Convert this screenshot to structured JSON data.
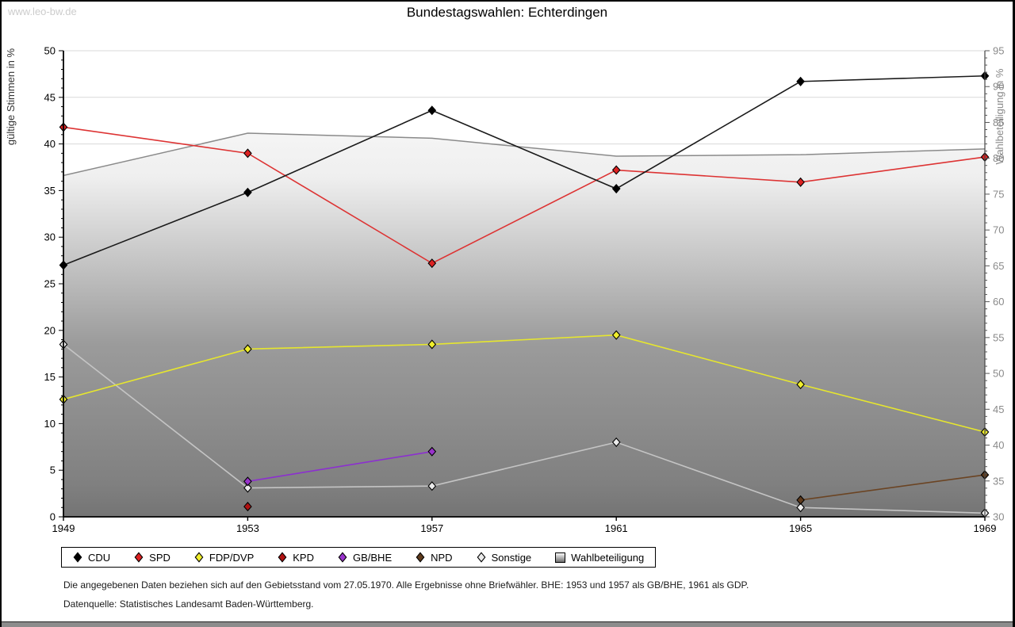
{
  "watermark": "www.leo-bw.de",
  "title": "Bundestagswahlen: Echterdingen",
  "chart_data": {
    "type": "line",
    "x": [
      1949,
      1953,
      1957,
      1961,
      1965,
      1969
    ],
    "left_axis": {
      "label": "gültige Stimmen in %",
      "min": 0,
      "max": 50,
      "tick_step": 5
    },
    "right_axis": {
      "label": "Wahlbeteiligung in %",
      "min": 30,
      "max": 95,
      "tick_step": 5
    },
    "grid": true,
    "legend_position": "bottom",
    "series": [
      {
        "name": "CDU",
        "axis": "left",
        "color": "#1a1a1a",
        "marker_fill": "#000000",
        "values": [
          27.0,
          34.8,
          43.6,
          35.2,
          46.7,
          47.3
        ]
      },
      {
        "name": "SPD",
        "axis": "left",
        "color": "#dd3333",
        "marker_fill": "#dd2222",
        "values": [
          41.8,
          39.0,
          27.2,
          37.2,
          35.9,
          38.6
        ]
      },
      {
        "name": "FDP/DVP",
        "axis": "left",
        "color": "#e6e62e",
        "marker_fill": "#f0ee2c",
        "values": [
          12.6,
          18.0,
          18.5,
          19.5,
          14.2,
          9.1
        ]
      },
      {
        "name": "KPD",
        "axis": "left",
        "color": "#b01212",
        "marker_fill": "#b01212",
        "values": [
          null,
          1.1,
          null,
          null,
          null,
          null
        ]
      },
      {
        "name": "GB/BHE",
        "axis": "left",
        "color": "#8c2fd0",
        "marker_fill": "#9933cc",
        "values": [
          null,
          3.8,
          7.0,
          null,
          null,
          null
        ]
      },
      {
        "name": "NPD",
        "axis": "left",
        "color": "#6b4423",
        "marker_fill": "#5e3a1c",
        "values": [
          null,
          null,
          null,
          null,
          1.8,
          4.5
        ]
      },
      {
        "name": "Sonstige",
        "axis": "left",
        "color": "#c4c4c4",
        "marker_fill": "#ebebeb",
        "values": [
          18.5,
          3.1,
          3.3,
          8.0,
          1.0,
          0.4
        ]
      },
      {
        "name": "Wahlbeteiligung",
        "axis": "right",
        "type": "area",
        "color": "#8a8a8a",
        "values": [
          77.6,
          83.5,
          82.8,
          80.3,
          80.5,
          81.3
        ]
      }
    ]
  },
  "legend": {
    "items": [
      {
        "label": "CDU",
        "marker": "diamond",
        "color": "#000000"
      },
      {
        "label": "SPD",
        "marker": "diamond",
        "color": "#dd2222"
      },
      {
        "label": "FDP/DVP",
        "marker": "diamond",
        "color": "#f0ee2c"
      },
      {
        "label": "KPD",
        "marker": "diamond",
        "color": "#b01212"
      },
      {
        "label": "GB/BHE",
        "marker": "diamond",
        "color": "#9933cc"
      },
      {
        "label": "NPD",
        "marker": "diamond",
        "color": "#5e3a1c"
      },
      {
        "label": "Sonstige",
        "marker": "diamond",
        "color": "#ebebeb"
      },
      {
        "label": "Wahlbeteiligung",
        "marker": "gradient-square",
        "color": "#8a8a8a"
      }
    ]
  },
  "footer": {
    "line1": "Die angegebenen Daten beziehen sich auf den Gebietsstand vom 27.05.1970. Alle Ergebnisse ohne Briefwähler. BHE: 1953 und 1957 als GB/BHE, 1961 als GDP.",
    "line2": "Datenquelle: Statistisches Landesamt Baden-Württemberg."
  }
}
